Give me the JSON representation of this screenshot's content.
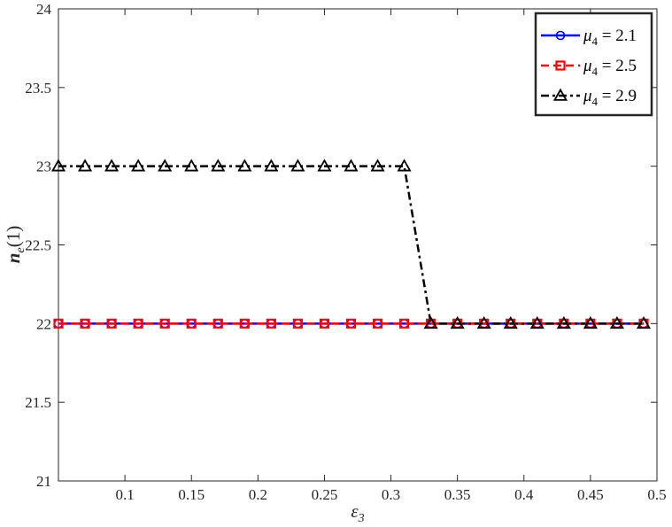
{
  "chart_data": {
    "type": "line",
    "title": "",
    "xlabel": "ε",
    "xlabel_sub": "3",
    "ylabel_main": "n",
    "ylabel_sub": "e",
    "ylabel_suffix": "(1)",
    "xlim": [
      0.05,
      0.5
    ],
    "ylim": [
      21,
      24
    ],
    "xticks": [
      0.1,
      0.15,
      0.2,
      0.25,
      0.3,
      0.35,
      0.4,
      0.45,
      0.5
    ],
    "xtick_labels": [
      "0.1",
      "0.15",
      "0.2",
      "0.25",
      "0.3",
      "0.35",
      "0.4",
      "0.45",
      "0.5"
    ],
    "yticks": [
      21,
      21.5,
      22,
      22.5,
      23,
      23.5,
      24
    ],
    "ytick_labels": [
      "21",
      "21.5",
      "22",
      "22.5",
      "23",
      "23.5",
      "24"
    ],
    "grid": false,
    "legend_position": "top-right",
    "x": [
      0.05,
      0.07,
      0.09,
      0.11,
      0.13,
      0.15,
      0.17,
      0.19,
      0.21,
      0.23,
      0.25,
      0.27,
      0.29,
      0.31,
      0.33,
      0.35,
      0.37,
      0.39,
      0.41,
      0.43,
      0.45,
      0.47,
      0.49
    ],
    "series": [
      {
        "name_symbol": "μ",
        "name_sub": "4",
        "name_value": " = 2.1",
        "color": "#0000ff",
        "line_style": "solid",
        "marker": "circle",
        "values": [
          22,
          22,
          22,
          22,
          22,
          22,
          22,
          22,
          22,
          22,
          22,
          22,
          22,
          22,
          22,
          22,
          22,
          22,
          22,
          22,
          22,
          22,
          22
        ]
      },
      {
        "name_symbol": "μ",
        "name_sub": "4",
        "name_value": " = 2.5",
        "color": "#ff0000",
        "line_style": "dashed",
        "marker": "square",
        "values": [
          22,
          22,
          22,
          22,
          22,
          22,
          22,
          22,
          22,
          22,
          22,
          22,
          22,
          22,
          22,
          22,
          22,
          22,
          22,
          22,
          22,
          22,
          22
        ]
      },
      {
        "name_symbol": "μ",
        "name_sub": "4",
        "name_value": " = 2.9",
        "color": "#000000",
        "line_style": "dashdot",
        "marker": "triangle",
        "values": [
          23,
          23,
          23,
          23,
          23,
          23,
          23,
          23,
          23,
          23,
          23,
          23,
          23,
          23,
          22,
          22,
          22,
          22,
          22,
          22,
          22,
          22,
          22
        ]
      }
    ]
  }
}
